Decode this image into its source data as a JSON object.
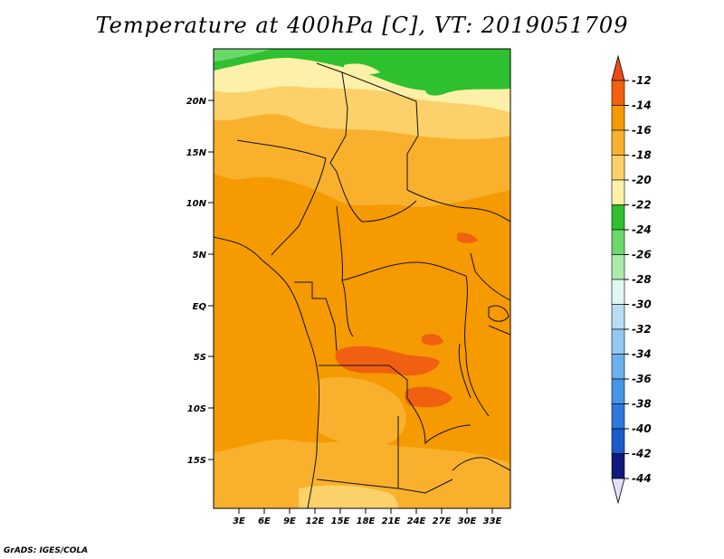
{
  "title": "Temperature at 400hPa [C], VT: 2019051709",
  "credit": "GrADS: IGES/COLA",
  "map": {
    "lat_labels": [
      "20N",
      "15N",
      "10N",
      "5N",
      "EQ",
      "5S",
      "10S",
      "15S"
    ],
    "lon_labels": [
      "3E",
      "6E",
      "9E",
      "12E",
      "15E",
      "18E",
      "21E",
      "24E",
      "27E",
      "30E",
      "33E"
    ]
  },
  "colorbar": {
    "labels": [
      "-12",
      "-14",
      "-16",
      "-18",
      "-20",
      "-22",
      "-24",
      "-26",
      "-28",
      "-30",
      "-32",
      "-34",
      "-36",
      "-38",
      "-40",
      "-42",
      "-44"
    ],
    "colors": {
      "top_arrow": "#f04a1a",
      "bottom_arrow": "#e0e0f8",
      "bins_top_down": [
        "#f06010",
        "#f59a00",
        "#f9b12d",
        "#fcd16a",
        "#fdf0a8",
        "#2fc02f",
        "#6ad96a",
        "#a9eba9",
        "#e0f7f3",
        "#b7def5",
        "#95c8f0",
        "#6cb0ec",
        "#4695e6",
        "#2c79dc",
        "#1a5bc8",
        "#0d1a78"
      ]
    }
  }
}
